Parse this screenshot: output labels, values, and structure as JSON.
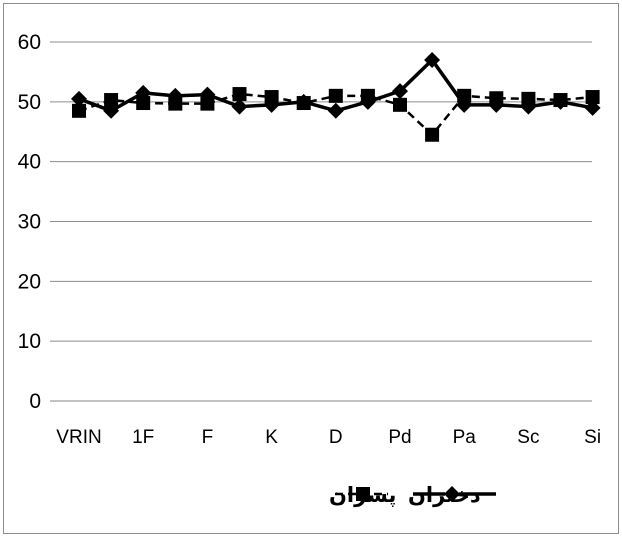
{
  "chart_data": {
    "type": "line",
    "categories": [
      "VRIN",
      "",
      "1F",
      "",
      "F",
      "",
      "K",
      "",
      "D",
      "",
      "Pd",
      "",
      "Pa",
      "",
      "Sc",
      "",
      "Si"
    ],
    "series": [
      {
        "name": "دختران",
        "style": "solid",
        "marker": "diamond",
        "color": "#000000",
        "values": [
          50.5,
          48.5,
          51.5,
          51,
          51.2,
          49.2,
          49.5,
          50,
          48.5,
          50,
          51.8,
          57,
          49.5,
          49.5,
          49.2,
          50,
          49
        ]
      },
      {
        "name": "پسران",
        "style": "dashed",
        "marker": "square",
        "color": "#000000",
        "values": [
          48.5,
          50.3,
          49.8,
          49.7,
          49.7,
          51.3,
          50.8,
          49.8,
          51,
          51,
          49.5,
          44.5,
          51,
          50.6,
          50.5,
          50.3,
          50.8
        ]
      }
    ],
    "ylim": [
      0,
      60
    ],
    "yticks": [
      0,
      10,
      20,
      30,
      40,
      50,
      60
    ],
    "grid": true,
    "legend": "bottom"
  }
}
